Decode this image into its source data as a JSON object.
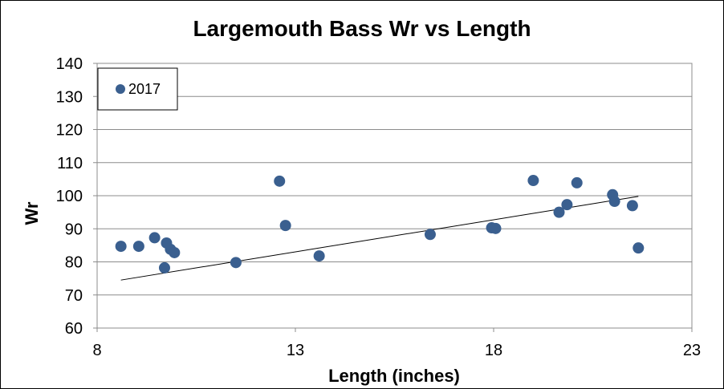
{
  "chart_data": {
    "type": "scatter",
    "title": "Largemouth Bass Wr vs Length",
    "xlabel": "Length (inches)",
    "ylabel": "Wr",
    "xlim": [
      8,
      23
    ],
    "ylim": [
      60,
      140
    ],
    "xticks": [
      8,
      13,
      18,
      23
    ],
    "yticks": [
      60,
      70,
      80,
      90,
      100,
      110,
      120,
      130,
      140
    ],
    "grid": "horizontal",
    "legend_placement": "top-left",
    "series": [
      {
        "name": "2017",
        "color": "#3a5f8f",
        "x": [
          8.6,
          9.05,
          9.45,
          9.7,
          9.75,
          9.85,
          9.95,
          11.5,
          12.6,
          12.75,
          13.6,
          16.4,
          17.95,
          18.05,
          19.0,
          19.65,
          19.85,
          20.1,
          21.0,
          21.05,
          21.5,
          21.65
        ],
        "y": [
          84.7,
          84.7,
          87.3,
          78.2,
          85.7,
          83.8,
          82.8,
          79.8,
          104.4,
          91.0,
          81.8,
          88.3,
          90.3,
          90.1,
          104.6,
          95.0,
          97.3,
          103.9,
          100.3,
          98.3,
          97.0,
          84.2
        ]
      }
    ],
    "trendline": {
      "type": "linear",
      "x": [
        8.6,
        21.65
      ],
      "y": [
        74.5,
        99.8
      ],
      "color": "#000000"
    }
  }
}
